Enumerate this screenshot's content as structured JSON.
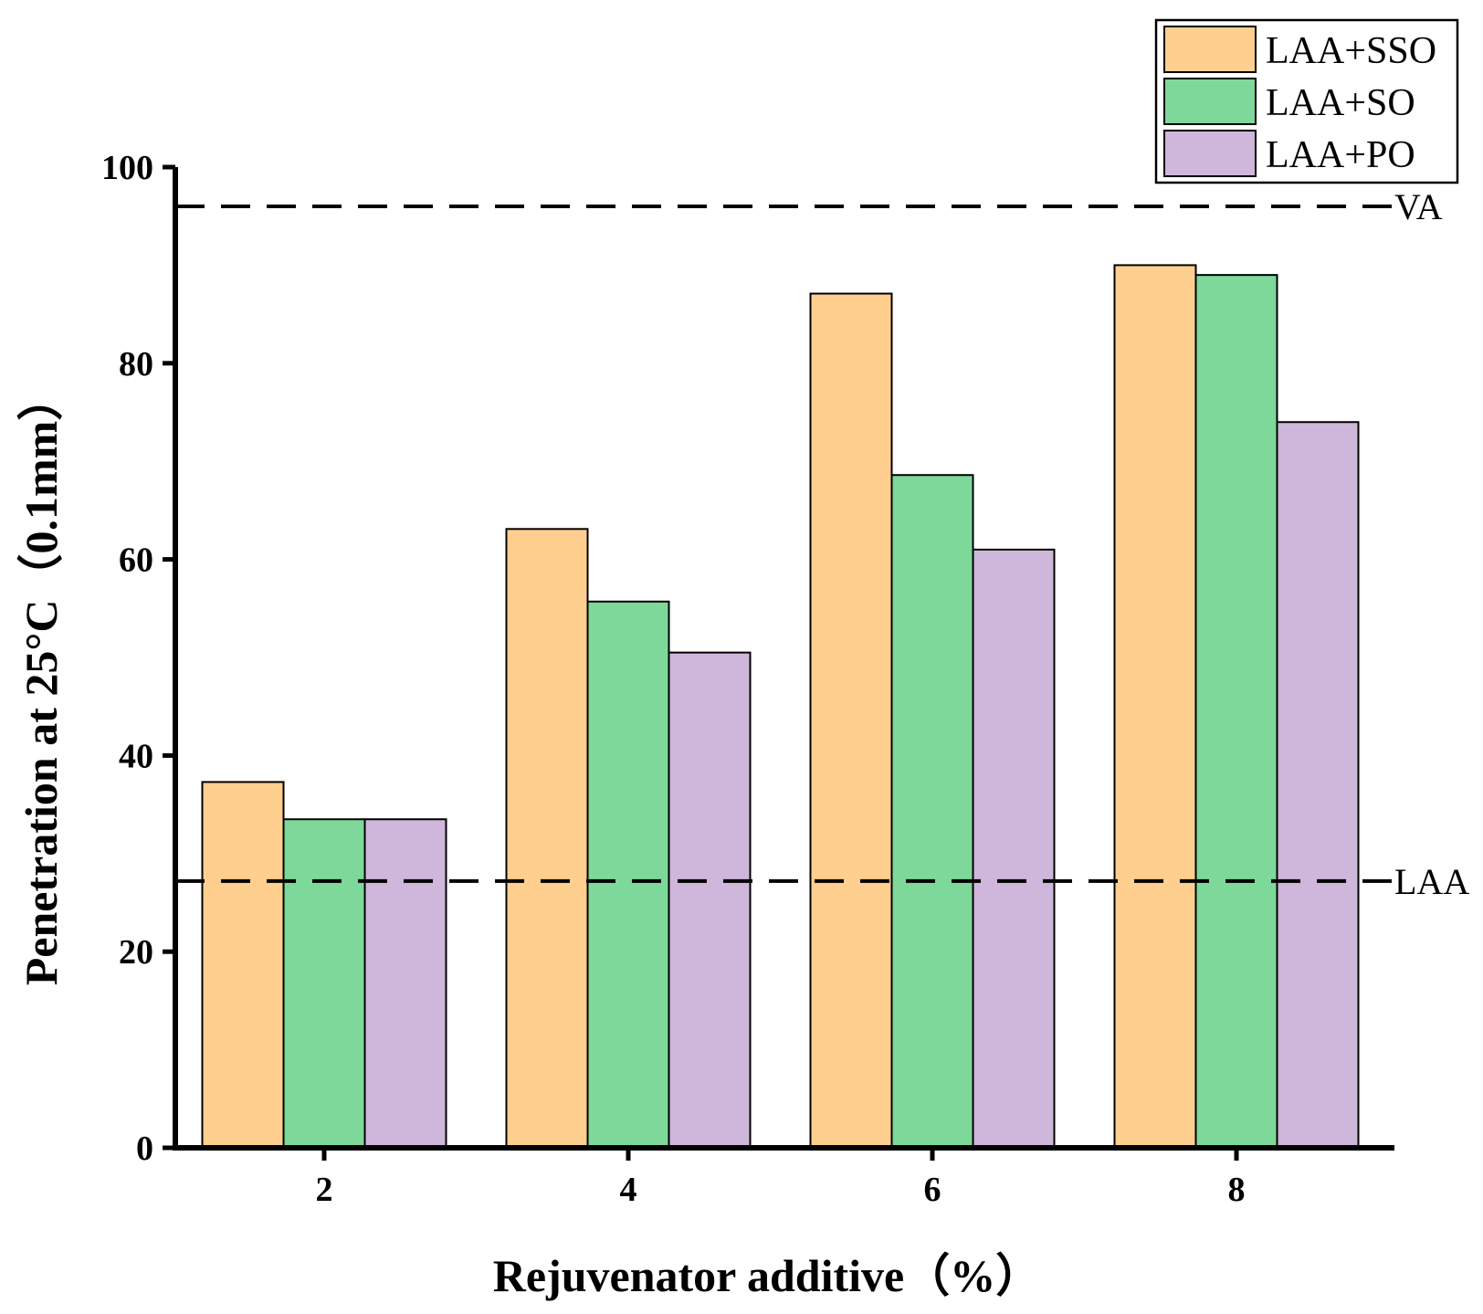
{
  "chart_data": {
    "type": "bar",
    "title": "",
    "xlabel": "Rejuvenator additive（%）",
    "ylabel": "Penetration  at 25°C（0.1mm）",
    "categories": [
      "2",
      "4",
      "6",
      "8"
    ],
    "series": [
      {
        "name": "LAA+SSO",
        "color": "#FFCF90",
        "values": [
          37.3,
          63.1,
          87.1,
          90.0
        ]
      },
      {
        "name": "LAA+SO",
        "color": "#7ED89A",
        "values": [
          33.5,
          55.7,
          68.6,
          89.0
        ]
      },
      {
        "name": "LAA+PO",
        "color": "#CFB6DB",
        "values": [
          33.5,
          50.5,
          61.0,
          74.0
        ]
      }
    ],
    "yticks": [
      0,
      20,
      40,
      60,
      80,
      100
    ],
    "ylim": [
      0,
      100
    ],
    "grid": false,
    "legend": "top-right",
    "reference_lines": [
      {
        "label": "VA",
        "value": 96.0,
        "style": "dashed"
      },
      {
        "label": "LAA",
        "value": 27.2,
        "style": "dashed"
      }
    ]
  }
}
